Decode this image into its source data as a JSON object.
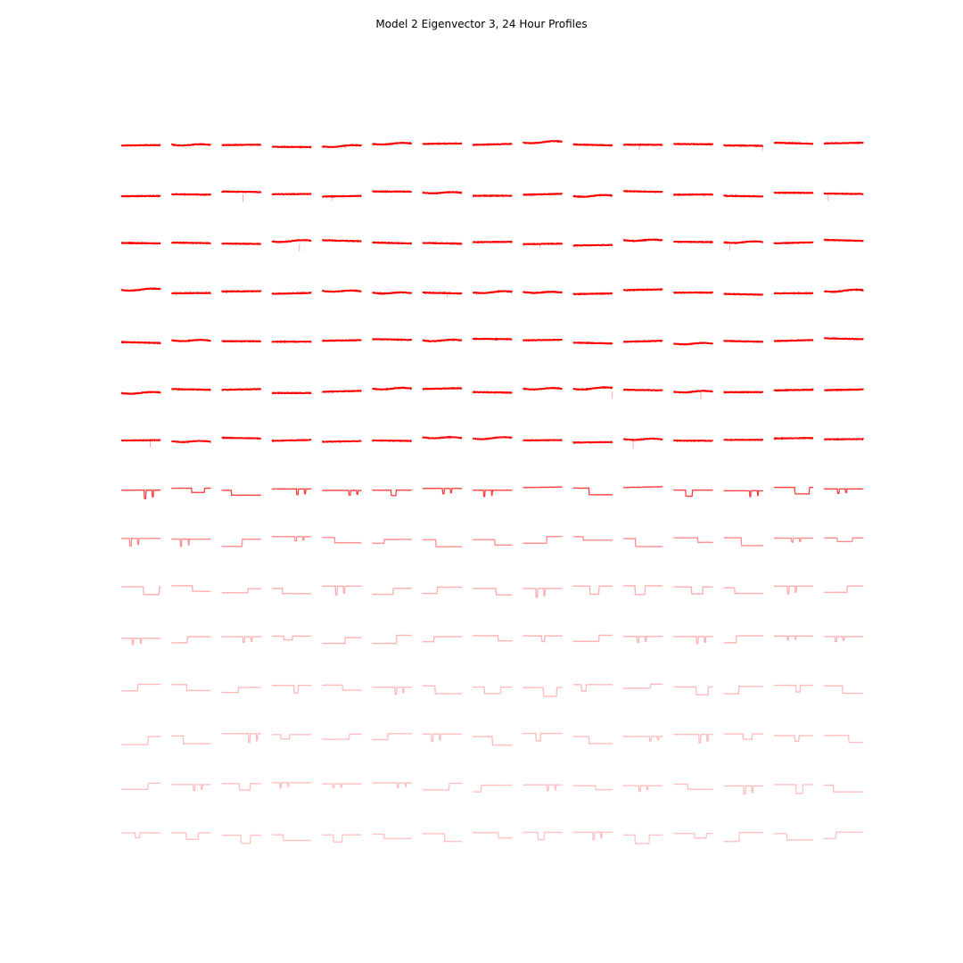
{
  "chart_data": {
    "type": "line",
    "title": "Model 2 Eigenvector 3, 24 Hour Profiles",
    "xlabel": "",
    "ylabel": "",
    "grid": false,
    "axes_visible": false,
    "layout": {
      "rows": 15,
      "cols": 15
    },
    "color": "#ff0000",
    "row_opacity": [
      1,
      1,
      1,
      1,
      1,
      1,
      0.95,
      0.75,
      0.45,
      0.32,
      0.3,
      0.27,
      0.26,
      0.25,
      0.24
    ],
    "row_styles": [
      "flat",
      "flat",
      "flat",
      "flat",
      "flat",
      "flat",
      "flat",
      "mixed",
      "dips",
      "dips",
      "dips",
      "dips",
      "dips",
      "dips",
      "dips"
    ]
  }
}
